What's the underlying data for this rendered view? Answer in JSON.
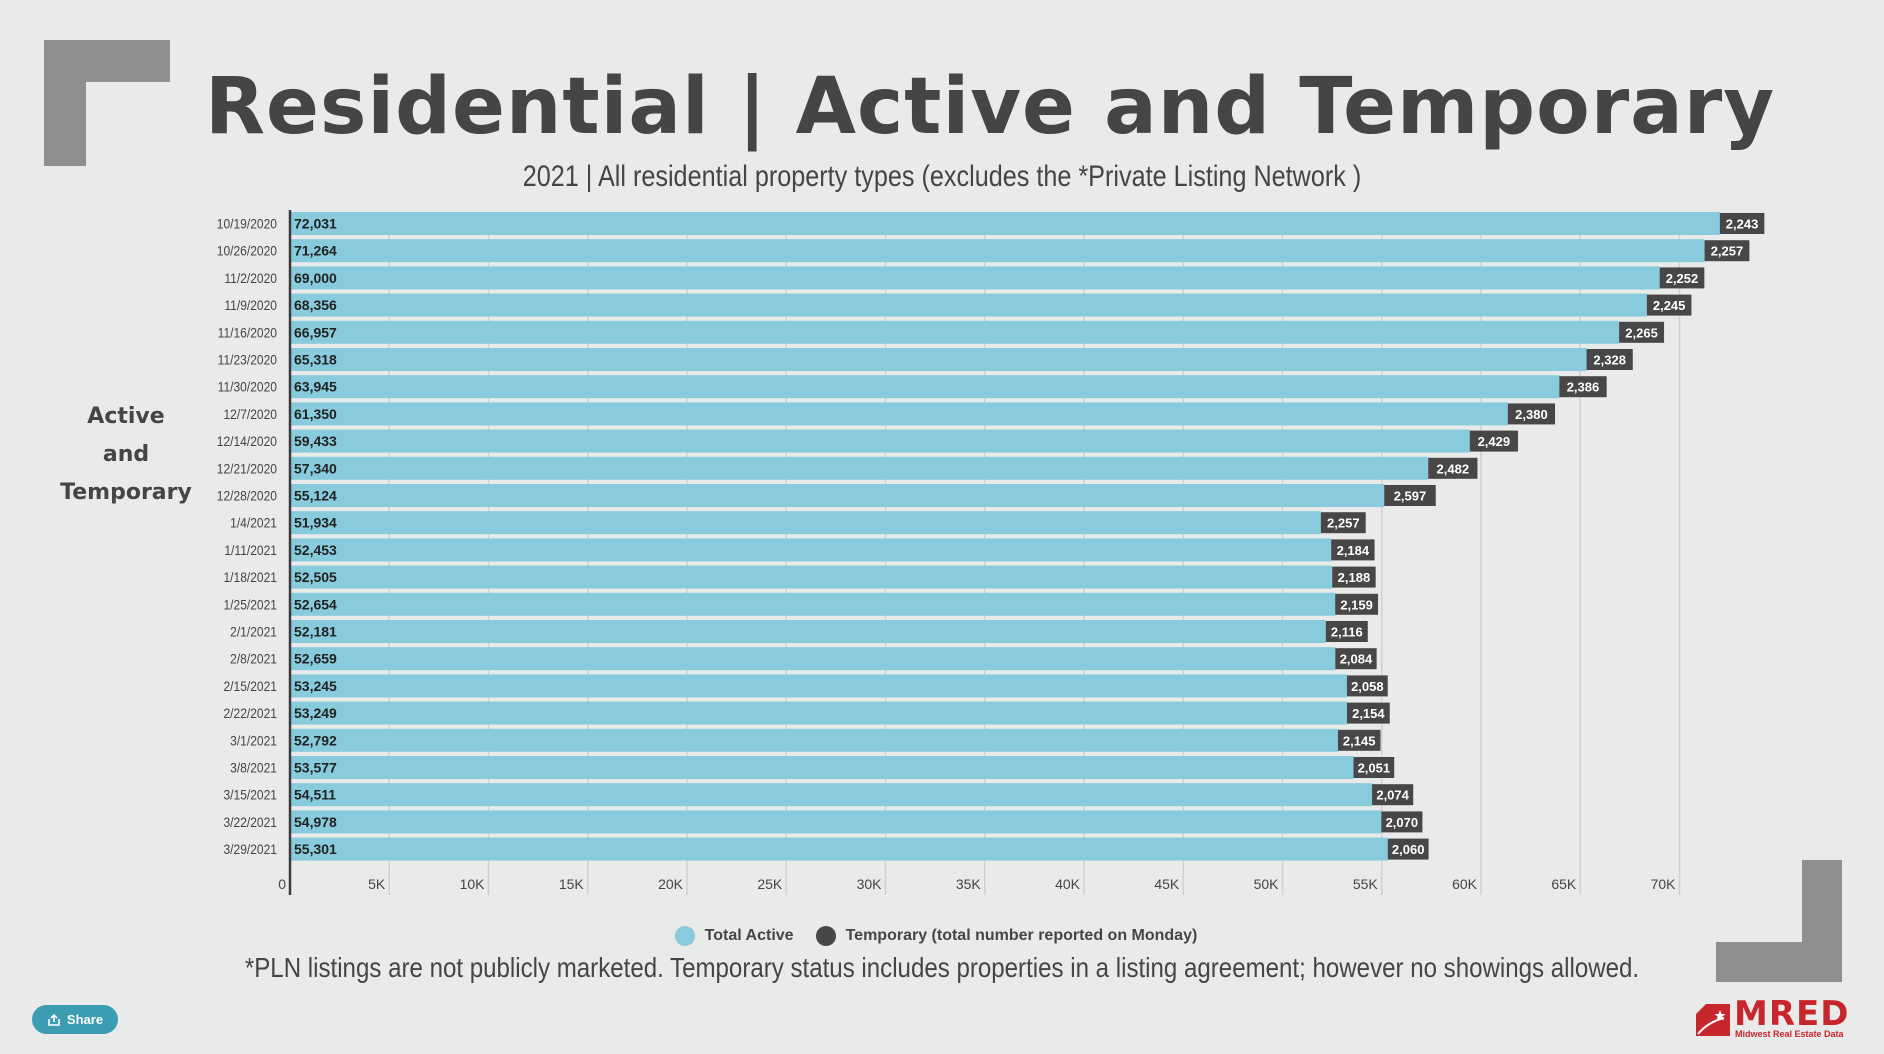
{
  "title": "Residential | Active and Temporary",
  "subtitle": "2021 | All residential property types (excludes the *Private Listing Network )",
  "side_label": [
    "Active",
    "and",
    "Temporary"
  ],
  "footnote": "*PLN listings are not publicly marketed. Temporary status includes properties in a listing agreement; however no showings allowed.",
  "share_label": "Share",
  "logo": {
    "name": "MRED",
    "tagline": "Midwest Real Estate Data"
  },
  "legend": [
    {
      "label": "Total Active",
      "color": "#88cbdc"
    },
    {
      "label": "Temporary (total number reported on Monday)",
      "color": "#474747"
    }
  ],
  "chart_data": {
    "type": "bar",
    "orientation": "horizontal",
    "stacked": true,
    "categories": [
      "10/19/2020",
      "10/26/2020",
      "11/2/2020",
      "11/9/2020",
      "11/16/2020",
      "11/23/2020",
      "11/30/2020",
      "12/7/2020",
      "12/14/2020",
      "12/21/2020",
      "12/28/2020",
      "1/4/2021",
      "1/11/2021",
      "1/18/2021",
      "1/25/2021",
      "2/1/2021",
      "2/8/2021",
      "2/15/2021",
      "2/22/2021",
      "3/1/2021",
      "3/8/2021",
      "3/15/2021",
      "3/22/2021",
      "3/29/2021"
    ],
    "series": [
      {
        "name": "Total Active",
        "color": "#88cbdc",
        "values": [
          72031,
          71264,
          69000,
          68356,
          66957,
          65318,
          63945,
          61350,
          59433,
          57340,
          55124,
          51934,
          52453,
          52505,
          52654,
          52181,
          52659,
          53245,
          53249,
          52792,
          53577,
          54511,
          54978,
          55301
        ],
        "labels": [
          "72,031",
          "71,264",
          "69,000",
          "68,356",
          "66,957",
          "65,318",
          "63,945",
          "61,350",
          "59,433",
          "57,340",
          "55,124",
          "51,934",
          "52,453",
          "52,505",
          "52,654",
          "52,181",
          "52,659",
          "53,245",
          "53,249",
          "52,792",
          "53,577",
          "54,511",
          "54,978",
          "55,301"
        ]
      },
      {
        "name": "Temporary (total number reported on Monday)",
        "color": "#474747",
        "values": [
          2243,
          2257,
          2252,
          2245,
          2265,
          2328,
          2386,
          2380,
          2429,
          2482,
          2597,
          2257,
          2184,
          2188,
          2159,
          2116,
          2084,
          2058,
          2154,
          2145,
          2051,
          2074,
          2070,
          2060
        ],
        "labels": [
          "2,243",
          "2,257",
          "2,252",
          "2,245",
          "2,265",
          "2,328",
          "2,386",
          "2,380",
          "2,429",
          "2,482",
          "2,597",
          "2,257",
          "2,184",
          "2,188",
          "2,159",
          "2,116",
          "2,084",
          "2,058",
          "2,154",
          "2,145",
          "2,051",
          "2,074",
          "2,070",
          "2,060"
        ]
      }
    ],
    "xlim": [
      0,
      75000
    ],
    "xticks": [
      0,
      5000,
      10000,
      15000,
      20000,
      25000,
      30000,
      35000,
      40000,
      45000,
      50000,
      55000,
      60000,
      65000,
      70000
    ],
    "xtick_labels": [
      "0",
      "5K",
      "10K",
      "15K",
      "20K",
      "25K",
      "30K",
      "35K",
      "40K",
      "45K",
      "50K",
      "55K",
      "60K",
      "65K",
      "70K"
    ],
    "grid": true,
    "legend_position": "bottom"
  }
}
